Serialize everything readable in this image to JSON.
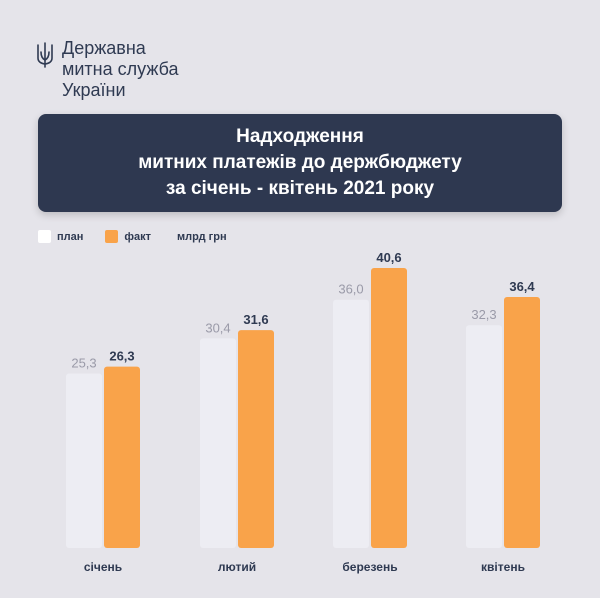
{
  "org": {
    "line1": "Державна",
    "line2": "митна служба",
    "line3": "України",
    "logo_icon": "trident-icon"
  },
  "title": {
    "line1": "Надходження",
    "line2": "митних платежів до держбюджету",
    "line3": "за січень - квітень 2021 року"
  },
  "legend": {
    "plan": "план",
    "fact": "факт",
    "unit": "млрд грн"
  },
  "colors": {
    "background": "#e5e4ea",
    "title_bg": "#2e3850",
    "plan": "#ededf3",
    "fact": "#f9a34a",
    "text_dark": "#2f3a52",
    "text_light": "#9a9aa8"
  },
  "chart_data": {
    "type": "bar",
    "categories": [
      "січень",
      "лютий",
      "березень",
      "квітень"
    ],
    "series": [
      {
        "name": "план",
        "values": [
          25.3,
          30.4,
          36.0,
          32.3
        ],
        "labels": [
          "25,3",
          "30,4",
          "36,0",
          "32,3"
        ]
      },
      {
        "name": "факт",
        "values": [
          26.3,
          31.6,
          40.6,
          36.4
        ],
        "labels": [
          "26,3",
          "31,6",
          "40,6",
          "36,4"
        ]
      }
    ],
    "ylim": [
      0,
      40.6
    ],
    "ylabel": "млрд грн",
    "legend_position": "top-left",
    "grid": false
  }
}
